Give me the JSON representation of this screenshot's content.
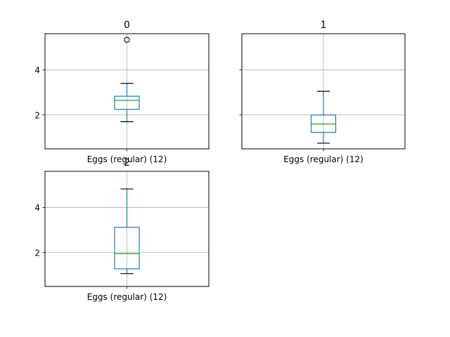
{
  "chart_data": [
    {
      "type": "boxplot",
      "title": "0",
      "category": "Eggs (regular) (12)",
      "ylim": [
        0.5,
        5.6
      ],
      "yticks": [
        2,
        4
      ],
      "grid": true,
      "stats": {
        "whislo": 1.7,
        "q1": 2.25,
        "med": 2.65,
        "q3": 2.83,
        "whishi": 3.4,
        "fliers": [
          5.33
        ]
      }
    },
    {
      "type": "boxplot",
      "title": "1",
      "category": "Eggs (regular) (12)",
      "ylim": [
        0.5,
        5.6
      ],
      "yticks": [
        2,
        4
      ],
      "grid": true,
      "stats": {
        "whislo": 0.75,
        "q1": 1.23,
        "med": 1.6,
        "q3": 2.0,
        "whishi": 3.05,
        "fliers": []
      }
    },
    {
      "type": "boxplot",
      "title": "2",
      "category": "Eggs (regular) (12)",
      "ylim": [
        0.5,
        5.6
      ],
      "yticks": [
        2,
        4
      ],
      "grid": true,
      "stats": {
        "whislo": 1.07,
        "q1": 1.28,
        "med": 1.95,
        "q3": 3.12,
        "whishi": 4.82,
        "fliers": []
      }
    }
  ],
  "colors": {
    "box": "#1f77b4",
    "median": "#2ca02c",
    "grid": "#b0b0b0",
    "axes": "#000000"
  }
}
